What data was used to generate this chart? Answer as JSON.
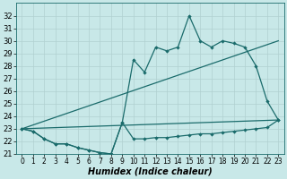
{
  "xlabel": "Humidex (Indice chaleur)",
  "bg_color": "#c8e8e8",
  "line_color": "#1a6b6b",
  "grid_color": "#b0d0d0",
  "x_values": [
    0,
    1,
    2,
    3,
    4,
    5,
    6,
    7,
    8,
    9,
    10,
    11,
    12,
    13,
    14,
    15,
    16,
    17,
    18,
    19,
    20,
    21,
    22,
    23
  ],
  "high_y": [
    23.0,
    22.8,
    22.2,
    21.8,
    21.8,
    21.5,
    21.3,
    21.1,
    21.0,
    23.5,
    28.5,
    27.5,
    29.5,
    29.2,
    29.5,
    32.0,
    30.0,
    29.5,
    30.0,
    29.8,
    29.5,
    28.0,
    25.2,
    23.7
  ],
  "low_y": [
    23.0,
    22.8,
    22.2,
    21.8,
    21.8,
    21.5,
    21.3,
    21.1,
    21.0,
    23.5,
    22.2,
    22.2,
    22.3,
    22.3,
    22.4,
    22.5,
    22.6,
    22.6,
    22.7,
    22.8,
    22.9,
    23.0,
    23.1,
    23.7
  ],
  "trend1_x": [
    0,
    23
  ],
  "trend1_y": [
    23.0,
    30.0
  ],
  "trend2_x": [
    0,
    23
  ],
  "trend2_y": [
    23.0,
    23.7
  ],
  "ylim": [
    21,
    33
  ],
  "xlim": [
    -0.5,
    23.5
  ],
  "yticks": [
    21,
    22,
    23,
    24,
    25,
    26,
    27,
    28,
    29,
    30,
    31,
    32
  ],
  "xticks": [
    0,
    1,
    2,
    3,
    4,
    5,
    6,
    7,
    8,
    9,
    10,
    11,
    12,
    13,
    14,
    15,
    16,
    17,
    18,
    19,
    20,
    21,
    22,
    23
  ],
  "font_size": 6,
  "lw": 0.9,
  "ms": 2.2
}
